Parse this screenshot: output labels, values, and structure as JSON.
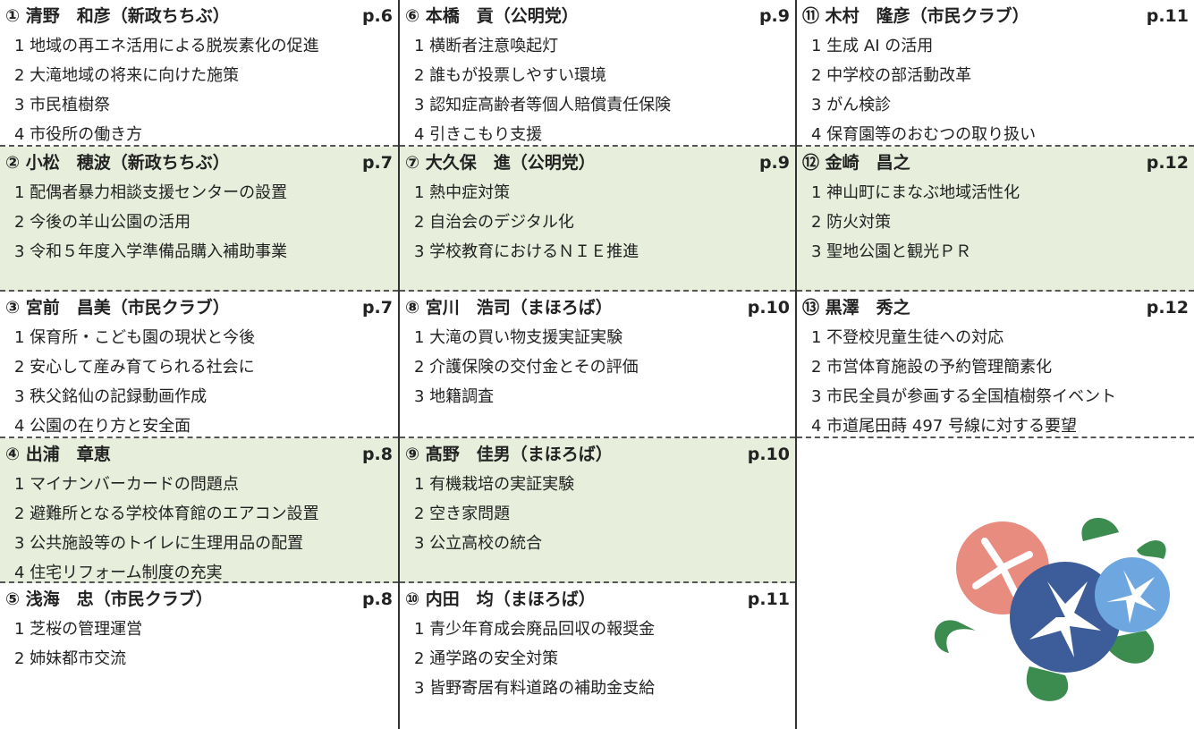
{
  "columns": [
    {
      "blocks": [
        {
          "header": {
            "name": "① 清野　和彦（新政ちちぶ）",
            "page": "p.6"
          },
          "items": [
            "1 地域の再エネ活用による脱炭素化の促進",
            "2 大滝地域の将来に向けた施策",
            "3 市民植樹祭",
            "4 市役所の働き方"
          ]
        },
        {
          "header": {
            "name": "② 小松　穂波（新政ちちぶ）",
            "page": "p.7"
          },
          "items": [
            "1 配偶者暴力相談支援センターの設置",
            "2 今後の羊山公園の活用",
            "3 令和５年度入学準備品購入補助事業"
          ]
        },
        {
          "header": {
            "name": "③ 宮前　昌美（市民クラブ）",
            "page": "p.7"
          },
          "items": [
            "1 保育所・こども園の現状と今後",
            "2 安心して産み育てられる社会に",
            "3 秩父銘仙の記録動画作成",
            "4 公園の在り方と安全面"
          ]
        },
        {
          "header": {
            "name": "④ 出浦　章恵",
            "page": "p.8"
          },
          "items": [
            "1 マイナンバーカードの問題点",
            "2 避難所となる学校体育館のエアコン設置",
            "3 公共施設等のトイレに生理用品の配置",
            "4 住宅リフォーム制度の充実"
          ]
        },
        {
          "header": {
            "name": "⑤ 浅海　忠（市民クラブ）",
            "page": "p.8"
          },
          "items": [
            "1 芝桜の管理運営",
            "2 姉妹都市交流"
          ]
        }
      ]
    },
    {
      "blocks": [
        {
          "header": {
            "name": "⑥ 本橋　貢（公明党）",
            "page": "p.9"
          },
          "items": [
            "1 横断者注意喚起灯",
            "2 誰もが投票しやすい環境",
            "3 認知症高齢者等個人賠償責任保険",
            "4 引きこもり支援"
          ]
        },
        {
          "header": {
            "name": "⑦ 大久保　進（公明党）",
            "page": "p.9"
          },
          "items": [
            "1 熱中症対策",
            "2 自治会のデジタル化",
            "3 学校教育におけるＮＩＥ推進"
          ]
        },
        {
          "header": {
            "name": "⑧ 宮川　浩司（まほろば）",
            "page": "p.10"
          },
          "items": [
            "1 大滝の買い物支援実証実験",
            "2 介護保険の交付金とその評価",
            "3 地籍調査"
          ]
        },
        {
          "header": {
            "name": "⑨ 髙野　佳男（まほろば）",
            "page": "p.10"
          },
          "items": [
            "1 有機栽培の実証実験",
            "2 空き家問題",
            "3 公立高校の統合"
          ]
        },
        {
          "header": {
            "name": "⑩ 内田　均（まほろば）",
            "page": "p.11"
          },
          "items": [
            "1 青少年育成会廃品回収の報奨金",
            "2 通学路の安全対策",
            "3 皆野寄居有料道路の補助金支給"
          ]
        }
      ]
    },
    {
      "blocks": [
        {
          "header": {
            "name": "⑪ 木村　隆彦（市民クラブ）",
            "page": "p.11"
          },
          "items": [
            "1 生成 AI の活用",
            "2 中学校の部活動改革",
            "3 がん検診",
            "4 保育園等のおむつの取り扱い"
          ]
        },
        {
          "header": {
            "name": "⑫ 金崎　昌之",
            "page": "p.12"
          },
          "items": [
            "1 神山町にまなぶ地域活性化",
            "2 防火対策",
            "3 聖地公園と観光ＰＲ"
          ]
        },
        {
          "header": {
            "name": "⑬ 黒澤　秀之",
            "page": "p.12"
          },
          "items": [
            "1 不登校児童生徒への対応",
            "2 市営体育施設の予約管理簡素化",
            "3 市民全員が参画する全国植樹祭イベント",
            "4 市道尾田蒔 497 号線に対する要望"
          ]
        }
      ]
    }
  ]
}
